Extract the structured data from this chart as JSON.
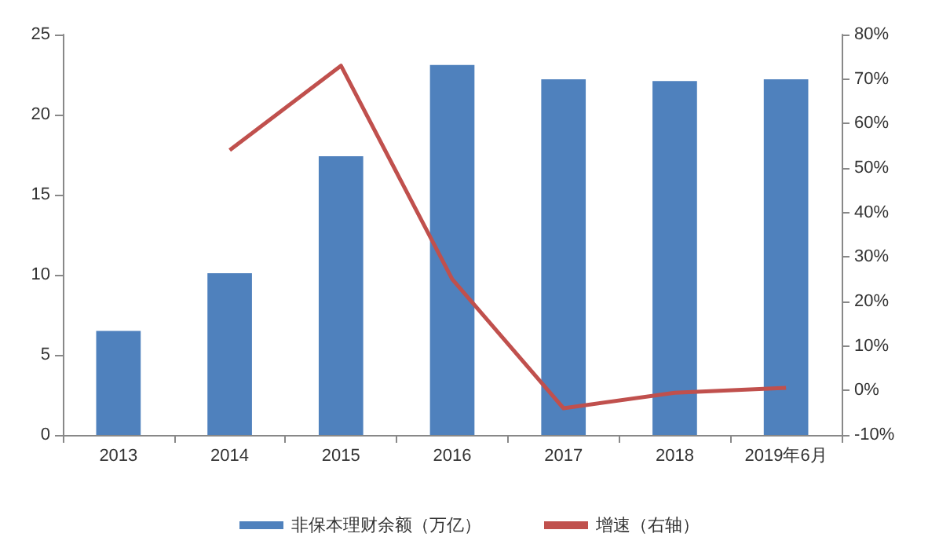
{
  "chart_data": {
    "type": "bar",
    "categories": [
      "2013",
      "2014",
      "2015",
      "2016",
      "2017",
      "2018",
      "2019年6月"
    ],
    "series": [
      {
        "name": "非保本理财余额（万亿）",
        "color": "#4f81bd",
        "values": [
          6.5,
          10.1,
          17.4,
          23.1,
          22.2,
          22.1,
          22.2
        ]
      },
      {
        "name": "增速（右轴）",
        "type": "line",
        "axis": "y2",
        "color": "#c0504d",
        "values": [
          null,
          54,
          73,
          25,
          -4,
          -0.5,
          0.6
        ]
      }
    ],
    "ylim": [
      0,
      25
    ],
    "yticks": [
      0,
      5,
      10,
      15,
      20,
      25
    ],
    "y2lim": [
      -10,
      80
    ],
    "y2ticks": [
      {
        "value": -10,
        "label": "-10%"
      },
      {
        "value": 0,
        "label": "0%"
      },
      {
        "value": 10,
        "label": "10%"
      },
      {
        "value": 20,
        "label": "20%"
      },
      {
        "value": 30,
        "label": "30%"
      },
      {
        "value": 40,
        "label": "40%"
      },
      {
        "value": 50,
        "label": "50%"
      },
      {
        "value": 60,
        "label": "60%"
      },
      {
        "value": 70,
        "label": "70%"
      },
      {
        "value": 80,
        "label": "80%"
      }
    ],
    "grid": false,
    "legend": "bottom",
    "marker": "none"
  }
}
